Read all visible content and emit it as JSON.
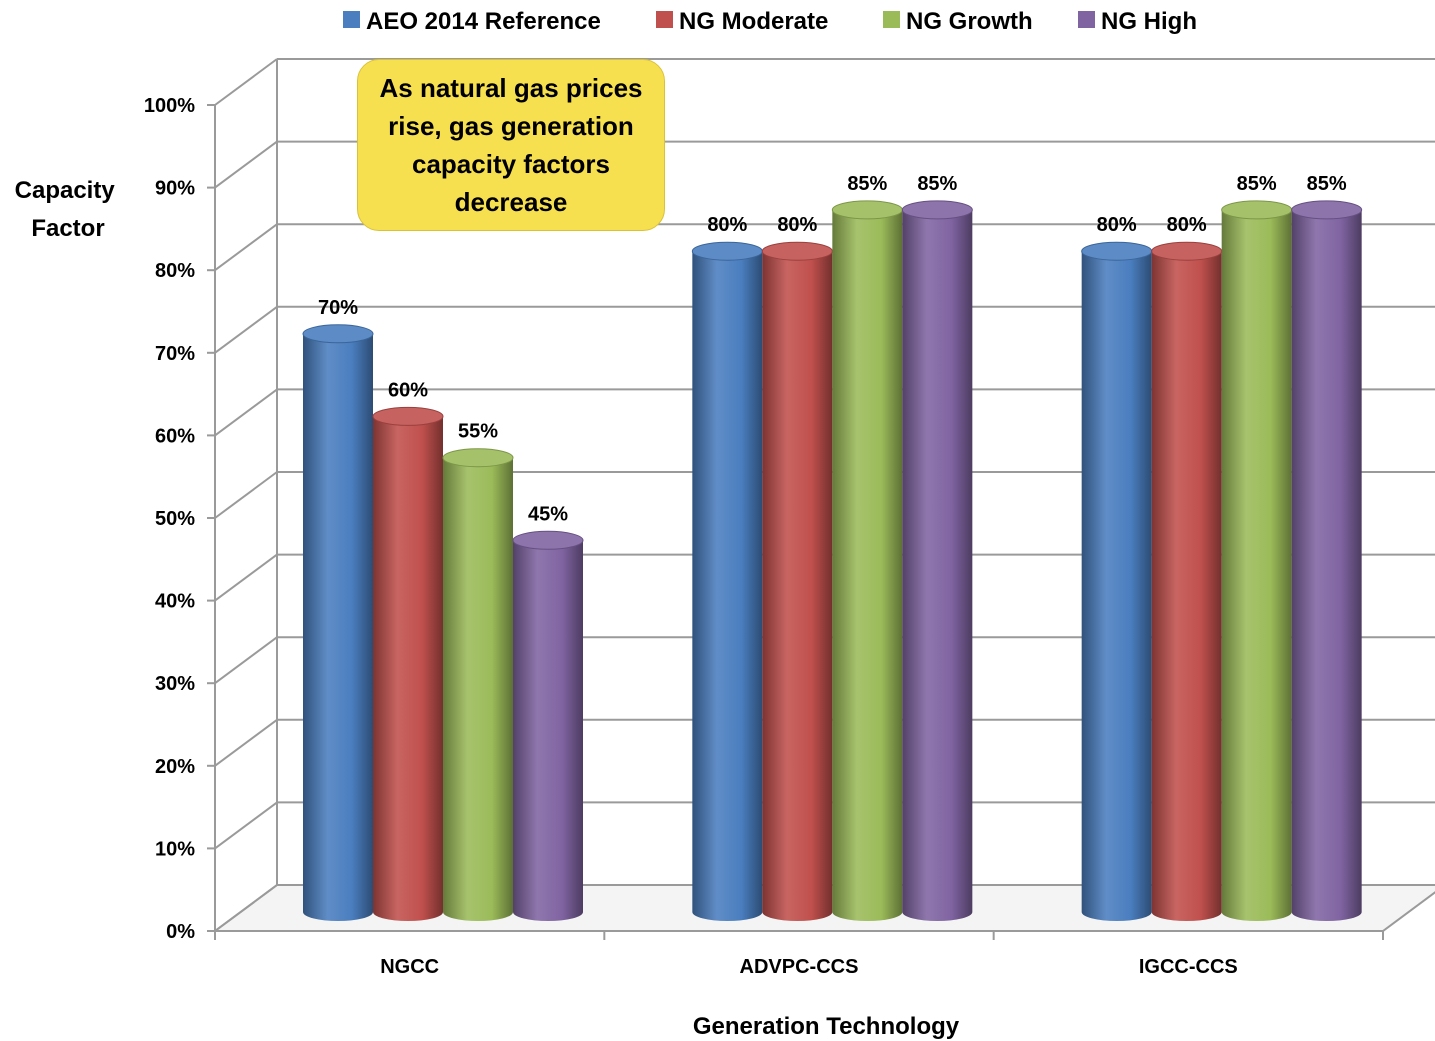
{
  "chart_data": {
    "type": "bar",
    "categories": [
      "NGCC",
      "ADVPC-CCS",
      "IGCC-CCS"
    ],
    "series": [
      {
        "name": "AEO 2014 Reference",
        "values": [
          70,
          80,
          80
        ],
        "color": "#4a7ebf"
      },
      {
        "name": "NG Moderate",
        "values": [
          60,
          80,
          80
        ],
        "color": "#c0504d"
      },
      {
        "name": "NG Growth",
        "values": [
          55,
          85,
          85
        ],
        "color": "#9bbb59"
      },
      {
        "name": "NG High",
        "values": [
          45,
          85,
          85
        ],
        "color": "#8064a2"
      }
    ],
    "data_labels": [
      [
        "70%",
        "80%",
        "80%"
      ],
      [
        "60%",
        "80%",
        "80%"
      ],
      [
        "55%",
        "85%",
        "85%"
      ],
      [
        "45%",
        "85%",
        "85%"
      ]
    ],
    "ylim": [
      0,
      100
    ],
    "yticks": [
      "0%",
      "10%",
      "20%",
      "30%",
      "40%",
      "50%",
      "60%",
      "70%",
      "80%",
      "90%",
      "100%"
    ],
    "xlabel": "Generation Technology",
    "ylabel": "Capacity Factor",
    "ylabel_lines": [
      "Capacity",
      "Factor"
    ],
    "legend_position": "top",
    "grid": true,
    "annotation": "As natural gas prices rise, gas generation capacity factors decrease"
  }
}
